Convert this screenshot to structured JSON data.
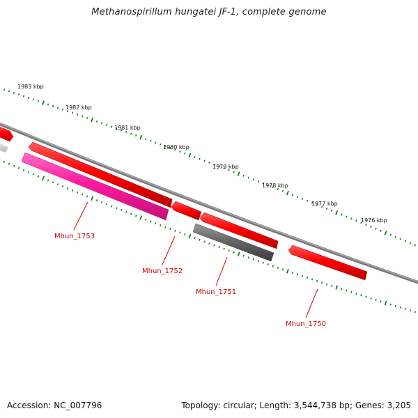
{
  "map": {
    "title": "Methanospirillum hungatei JF-1, complete genome",
    "accession": "Accession: NC_007796",
    "topology": "Topology: circular; Length: 3,544,738 bp; Genes: 3,205"
  },
  "colors": {
    "backbone": "#7a7a7a",
    "ticks": "#1a7a1a",
    "gene_red": "#ff0000",
    "gene_pink": "#ff1aa0",
    "gene_gray": "#666666",
    "label_red": "#cc0000"
  },
  "scale_labels": [
    "1983 kbp",
    "1982 kbp",
    "1981 kbp",
    "1980 kbp",
    "1979 kbp",
    "1978 kbp",
    "1977 kbp",
    "1976 kbp"
  ],
  "genes": [
    {
      "label": "Mhun_1753",
      "kind": "pink"
    },
    {
      "label": "Mhun_1752",
      "kind": "red"
    },
    {
      "label": "Mhun_1751",
      "kind": "gray"
    },
    {
      "label": "Mhun_1750",
      "kind": "red"
    }
  ]
}
